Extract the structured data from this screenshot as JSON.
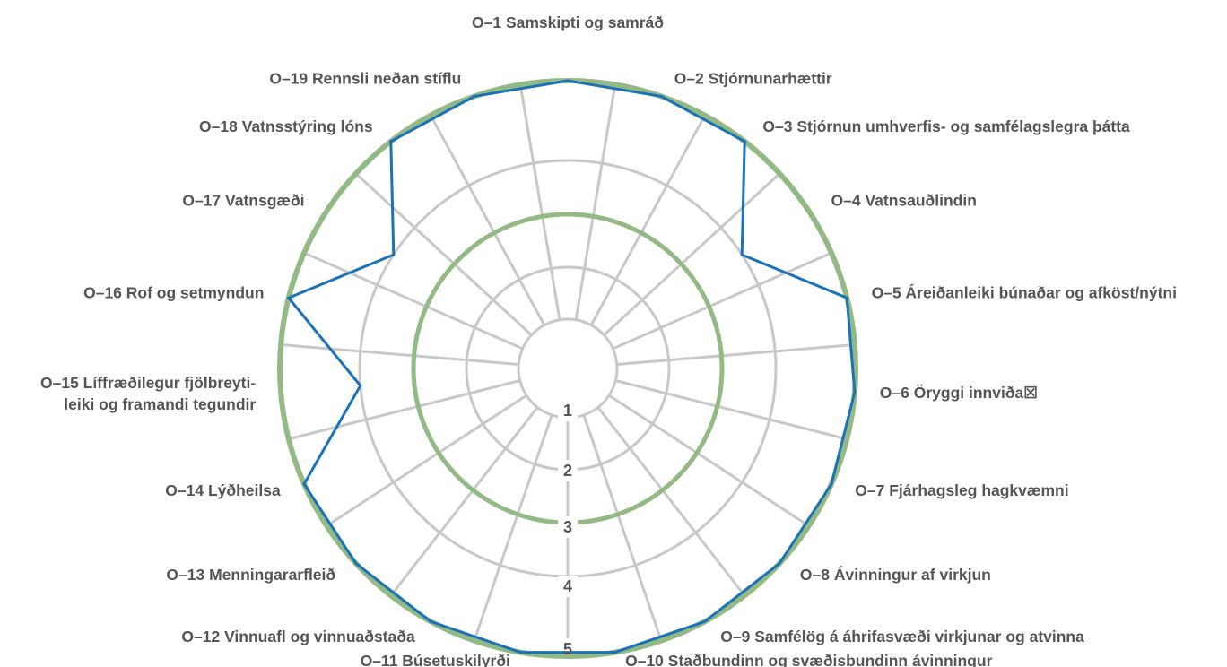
{
  "chart_data": {
    "type": "radar",
    "title": "",
    "levels": [
      "1",
      "2",
      "3",
      "4",
      "5"
    ],
    "rmax": 5,
    "categories": [
      [
        "O–1 Samskipti og samráð"
      ],
      [
        "O–2 Stjórnunarhættir"
      ],
      [
        "O–3 Stjórnun umhverfis- og samfélagslegra þátta"
      ],
      [
        "O–4 Vatnsauðlindin"
      ],
      [
        "O–5  Áreiðanleiki búnaðar og afköst/nýtni"
      ],
      [
        "O–6 Öryggi innviða☒"
      ],
      [
        "O–7 Fjárhagsleg hagkvæmni"
      ],
      [
        "O–8 Ávinningur af virkjun"
      ],
      [
        "O–9 Samfélög á áhrifasvæði virkjunar og atvinna"
      ],
      [
        "O–10 Staðbundinn og svæðisbundinn ávinningur"
      ],
      [
        "O–11 Búsetuskilyrði"
      ],
      [
        "O–12 Vinnuafl og vinnuaðstaða"
      ],
      [
        "O–13 Menningararfleið"
      ],
      [
        "O–14 Lýðheilsa"
      ],
      [
        "O–15 Líffræðilegur fjölbreyti-",
        "leiki og framandi tegundir"
      ],
      [
        "O–16 Rof og setmyndun"
      ],
      [
        "O–17 Vatnsgæði"
      ],
      [
        "O–18 Vatnsstýring lóns"
      ],
      [
        "O–19 Rennsli neðan stíflu"
      ]
    ],
    "values": [
      5,
      5,
      5,
      4,
      5,
      5,
      5,
      5,
      5,
      5,
      5,
      5,
      5,
      5,
      4,
      5,
      4,
      5,
      5
    ],
    "colors": {
      "series": "#1a72b8",
      "outer_ring": "#93ba85",
      "mid_ring": "#93ba85",
      "grid": "#c8c8c8",
      "text": "#555555"
    }
  }
}
